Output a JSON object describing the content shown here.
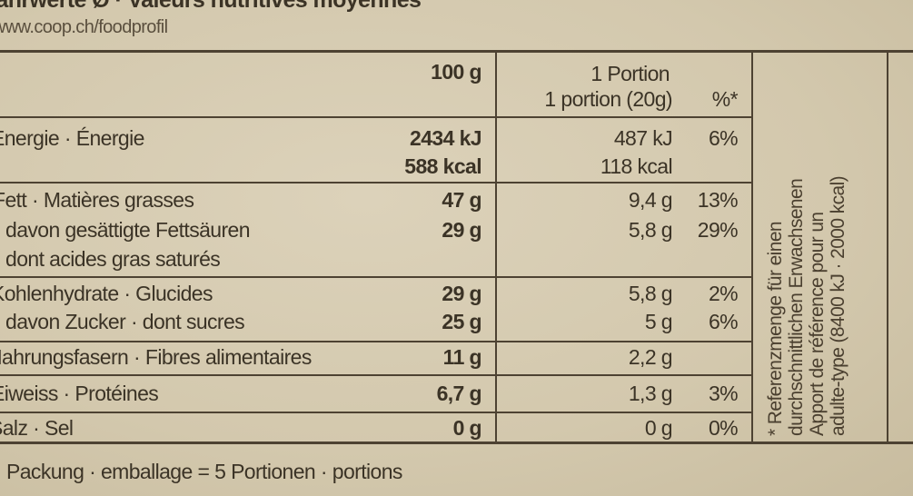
{
  "header": {
    "title": "Nährwerte Ø · Valeurs nutritives moyennes",
    "url": "www.coop.ch/foodprofil"
  },
  "columns": {
    "per100": "100 g",
    "portion_line1": "1 Portion",
    "portion_line2": "1 portion (20g)",
    "percent": "%*"
  },
  "rows": [
    {
      "label": "Energie · Énergie",
      "per100": "2434 kJ",
      "portion": "487 kJ",
      "percent": "6%"
    },
    {
      "label": "",
      "per100": "588 kcal",
      "portion": "118 kcal",
      "percent": ""
    },
    {
      "label": "Fett · Matières grasses",
      "per100": "47 g",
      "portion": "9,4 g",
      "percent": "13%"
    },
    {
      "label": "davon gesättigte Fettsäuren",
      "per100": "29 g",
      "portion": "5,8 g",
      "percent": "29%"
    },
    {
      "label": "dont acides gras saturés",
      "per100": "",
      "portion": "",
      "percent": ""
    },
    {
      "label": "Kohlenhydrate · Glucides",
      "per100": "29 g",
      "portion": "5,8 g",
      "percent": "2%"
    },
    {
      "label": "davon Zucker · dont sucres",
      "per100": "25 g",
      "portion": "5 g",
      "percent": "6%"
    },
    {
      "label": "Nahrungsfasern · Fibres alimentaires",
      "per100": "11 g",
      "portion": "2,2 g",
      "percent": ""
    },
    {
      "label": "Eiweiss · Protéines",
      "per100": "6,7 g",
      "portion": "1,3 g",
      "percent": "3%"
    },
    {
      "label": "Salz · Sel",
      "per100": "0 g",
      "portion": "0 g",
      "percent": "0%"
    }
  ],
  "footnote": {
    "line1": "* Referenzmenge für einen",
    "line2": "durchschnittlichen Erwachsenen",
    "line3": "Apport de référence pour un",
    "line4": "adulte-type (8400 kJ · 2000 kcal)"
  },
  "footer": "Packung · emballage = 5 Portionen · portions"
}
